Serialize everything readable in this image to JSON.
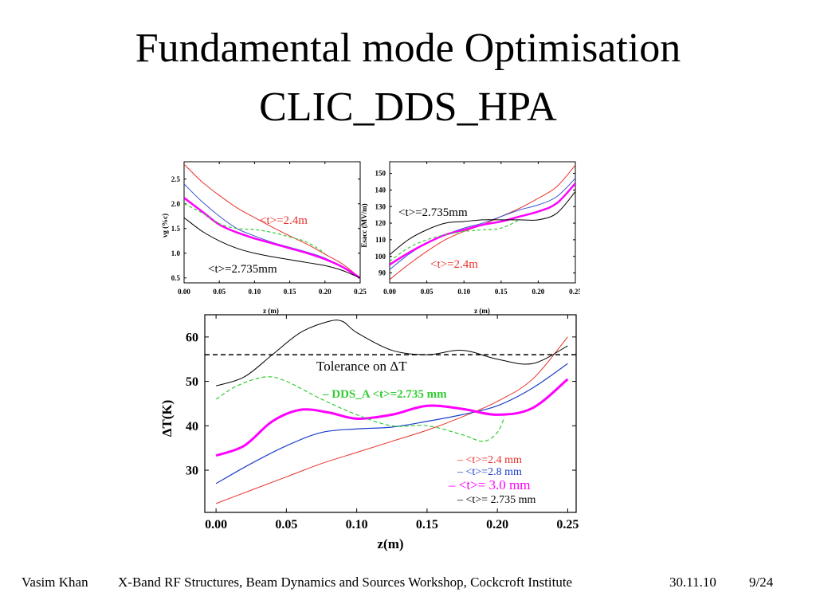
{
  "slide": {
    "title_line1": "Fundamental mode Optimisation",
    "title_line2": "CLIC_DDS_HPA"
  },
  "footer": {
    "author": "Vasim Khan",
    "event": "X-Band RF Structures, Beam Dynamics and Sources Workshop, Cockcroft Institute",
    "date": "30.11.10",
    "page": "9/24"
  },
  "chart_data": [
    {
      "type": "line",
      "xlabel": "z (m)",
      "ylabel": "vg (%c)",
      "xlim": [
        0,
        0.25
      ],
      "ylim": [
        0.4,
        2.85
      ],
      "xticks": [
        "0.00",
        "0.05",
        "0.10",
        "0.15",
        "0.20",
        "0.25"
      ],
      "yticks": [
        "0.5",
        "1.0",
        "1.5",
        "2.0",
        "2.5"
      ],
      "annotations": [
        {
          "text": "<t>=2.4m",
          "color": "#e8322a"
        },
        {
          "text": "<t>=2.735mm",
          "color": "#000000"
        }
      ],
      "series": [
        {
          "color": "#e8322a",
          "width": 1,
          "dash": "",
          "x": [
            0,
            0.025,
            0.05,
            0.075,
            0.1,
            0.125,
            0.15,
            0.175,
            0.2,
            0.225,
            0.25
          ],
          "y": [
            2.8,
            2.45,
            2.17,
            1.92,
            1.72,
            1.53,
            1.35,
            1.18,
            0.98,
            0.78,
            0.5
          ]
        },
        {
          "color": "#3355cc",
          "width": 1,
          "dash": "",
          "x": [
            0,
            0.025,
            0.05,
            0.075,
            0.1,
            0.125,
            0.15,
            0.175,
            0.2,
            0.225,
            0.25
          ],
          "y": [
            2.4,
            2.05,
            1.75,
            1.5,
            1.35,
            1.22,
            1.12,
            1.02,
            0.9,
            0.72,
            0.5
          ]
        },
        {
          "color": "#ff00ff",
          "width": 2.5,
          "dash": "",
          "x": [
            0,
            0.025,
            0.05,
            0.075,
            0.1,
            0.125,
            0.15,
            0.175,
            0.2,
            0.225,
            0.25
          ],
          "y": [
            2.12,
            1.85,
            1.58,
            1.42,
            1.3,
            1.2,
            1.1,
            1.0,
            0.88,
            0.72,
            0.5
          ]
        },
        {
          "color": "#33cc33",
          "width": 1.2,
          "dash": "4,3",
          "x": [
            0,
            0.025,
            0.05,
            0.075,
            0.1,
            0.125,
            0.15,
            0.175,
            0.2
          ],
          "y": [
            2.0,
            1.82,
            1.6,
            1.5,
            1.48,
            1.42,
            1.33,
            1.22,
            1.0
          ]
        },
        {
          "color": "#000000",
          "width": 1,
          "dash": "",
          "x": [
            0,
            0.025,
            0.05,
            0.075,
            0.1,
            0.125,
            0.15,
            0.175,
            0.2,
            0.225,
            0.25
          ],
          "y": [
            1.72,
            1.45,
            1.25,
            1.1,
            1.0,
            0.93,
            0.87,
            0.81,
            0.75,
            0.65,
            0.5
          ]
        }
      ]
    },
    {
      "type": "line",
      "xlabel": "z (m)",
      "ylabel": "Esacc (MV/m)",
      "xlim": [
        0,
        0.25
      ],
      "ylim": [
        84,
        157
      ],
      "xticks": [
        "0.00",
        "0.05",
        "0.10",
        "0.15",
        "0.20",
        "0.25"
      ],
      "yticks": [
        "90",
        "100",
        "110",
        "120",
        "130",
        "140",
        "150"
      ],
      "annotations": [
        {
          "text": "<t>=2.735mm",
          "color": "#000000"
        },
        {
          "text": "<t>=2.4m",
          "color": "#e8322a"
        }
      ],
      "series": [
        {
          "color": "#e8322a",
          "width": 1,
          "dash": "",
          "x": [
            0,
            0.025,
            0.05,
            0.075,
            0.1,
            0.125,
            0.15,
            0.175,
            0.2,
            0.225,
            0.25
          ],
          "y": [
            86,
            95,
            103,
            110,
            115,
            119,
            124,
            129,
            135,
            142,
            155
          ]
        },
        {
          "color": "#3355cc",
          "width": 1,
          "dash": "",
          "x": [
            0,
            0.025,
            0.05,
            0.075,
            0.1,
            0.125,
            0.15,
            0.175,
            0.2,
            0.225,
            0.25
          ],
          "y": [
            92,
            101,
            108,
            113,
            117,
            120,
            124,
            128,
            131,
            136,
            147
          ]
        },
        {
          "color": "#ff00ff",
          "width": 2.5,
          "dash": "",
          "x": [
            0,
            0.025,
            0.05,
            0.075,
            0.1,
            0.125,
            0.15,
            0.175,
            0.2,
            0.225,
            0.25
          ],
          "y": [
            95,
            102,
            108,
            113,
            116,
            119,
            121,
            124,
            127,
            132,
            144
          ]
        },
        {
          "color": "#33cc33",
          "width": 1.2,
          "dash": "4,3",
          "x": [
            0,
            0.025,
            0.05,
            0.075,
            0.1,
            0.125,
            0.15,
            0.175
          ],
          "y": [
            97,
            105,
            110,
            113,
            115,
            116,
            117,
            122
          ]
        },
        {
          "color": "#000000",
          "width": 1,
          "dash": "",
          "x": [
            0,
            0.025,
            0.05,
            0.075,
            0.1,
            0.125,
            0.15,
            0.175,
            0.2,
            0.225,
            0.25
          ],
          "y": [
            101,
            110,
            116,
            120,
            121,
            122,
            122,
            122,
            122,
            126,
            139
          ]
        }
      ]
    },
    {
      "type": "line",
      "xlabel": "z(m)",
      "ylabel": "ΔT(K)",
      "xlim": [
        -0.008,
        0.256
      ],
      "ylim": [
        20.5,
        65
      ],
      "xticks": [
        "0.00",
        "0.05",
        "0.10",
        "0.15",
        "0.20",
        "0.25"
      ],
      "yticks": [
        "30",
        "40",
        "50",
        "60"
      ],
      "tolerance": {
        "value": 56,
        "label": "Tolerance on ΔT"
      },
      "legend": [
        {
          "text": "– DDS_A <t>=2.735 mm",
          "color": "#33cc33"
        },
        {
          "text": "– <t>=2.4 mm",
          "color": "#e8322a"
        },
        {
          "text": "– <t>=2.8 mm",
          "color": "#1a3fcc"
        },
        {
          "text": "– <t>= 3.0 mm",
          "color": "#ff00ff"
        },
        {
          "text": "– <t>= 2.735 mm",
          "color": "#000000"
        }
      ],
      "series": [
        {
          "name": "<t>=2.4 mm",
          "color": "#e8322a",
          "width": 1,
          "dash": "",
          "x": [
            0,
            0.025,
            0.05,
            0.075,
            0.1,
            0.125,
            0.15,
            0.175,
            0.2,
            0.225,
            0.25
          ],
          "y": [
            22.5,
            25.5,
            28.5,
            31.5,
            34,
            36.5,
            39,
            42,
            45.5,
            50.5,
            60
          ]
        },
        {
          "name": "<t>=2.8 mm",
          "color": "#1a3fcc",
          "width": 1.2,
          "dash": "",
          "x": [
            0,
            0.025,
            0.05,
            0.075,
            0.1,
            0.125,
            0.15,
            0.175,
            0.2,
            0.225,
            0.25
          ],
          "y": [
            27,
            31.5,
            35.5,
            38.5,
            39.3,
            39.7,
            41,
            42.5,
            44.5,
            48.5,
            54
          ]
        },
        {
          "name": "<t>= 3.0 mm",
          "color": "#ff00ff",
          "width": 3,
          "dash": "",
          "x": [
            0,
            0.02,
            0.04,
            0.06,
            0.08,
            0.1,
            0.125,
            0.15,
            0.175,
            0.2,
            0.225,
            0.25
          ],
          "y": [
            33.3,
            35.5,
            41,
            43.6,
            43,
            41.6,
            42.5,
            44.5,
            43.8,
            42.5,
            44,
            50.5
          ]
        },
        {
          "name": "DDS_A <t>=2.735 mm",
          "color": "#33cc33",
          "width": 1.2,
          "dash": "5,3",
          "x": [
            0,
            0.015,
            0.035,
            0.05,
            0.075,
            0.1,
            0.125,
            0.15,
            0.175,
            0.19,
            0.2,
            0.205
          ],
          "y": [
            46,
            49,
            51,
            50,
            46,
            42.5,
            40,
            40,
            38,
            36.5,
            38.5,
            42
          ]
        },
        {
          "name": "<t>= 2.735 mm",
          "color": "#000000",
          "width": 1,
          "dash": "",
          "x": [
            0,
            0.02,
            0.04,
            0.06,
            0.08,
            0.09,
            0.1,
            0.125,
            0.15,
            0.175,
            0.2,
            0.225,
            0.25
          ],
          "y": [
            49,
            51,
            56,
            61,
            63.5,
            63.5,
            61,
            57,
            56,
            57,
            55,
            54,
            58
          ]
        }
      ]
    }
  ]
}
